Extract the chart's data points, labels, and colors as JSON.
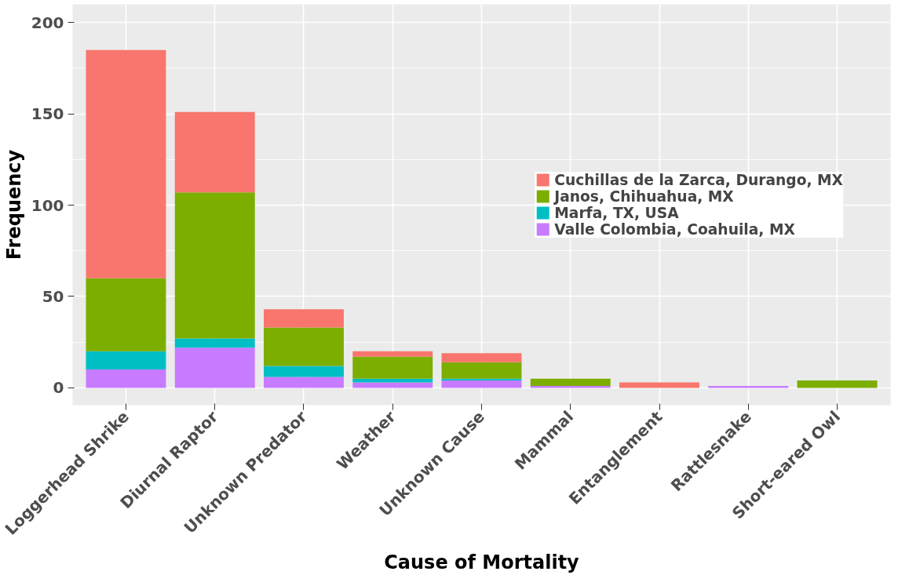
{
  "chart_data": {
    "type": "bar",
    "stacked": true,
    "xlabel": "Cause of Mortality",
    "ylabel": "Frequency",
    "categories": [
      "Loggerhead Shrike",
      "Diurnal Raptor",
      "Unknown Predator",
      "Weather",
      "Unknown Cause",
      "Mammal",
      "Entanglement",
      "Rattlesnake",
      "Short-eared Owl"
    ],
    "series": [
      {
        "name": "Valle Colombia, Coahuila, MX",
        "color": "#c77cff",
        "values": [
          10,
          22,
          6,
          3,
          4,
          1,
          0,
          1,
          0
        ]
      },
      {
        "name": "Marfa, TX, USA",
        "color": "#00bfc4",
        "values": [
          10,
          5,
          6,
          2,
          1,
          0,
          0,
          0,
          0
        ]
      },
      {
        "name": "Janos, Chihuahua, MX",
        "color": "#7cae00",
        "values": [
          40,
          80,
          21,
          12,
          9,
          4,
          0,
          0,
          4
        ]
      },
      {
        "name": "Cuchillas de la Zarca, Durango, MX",
        "color": "#f8766d",
        "values": [
          125,
          44,
          10,
          3,
          5,
          0,
          3,
          0,
          0
        ]
      }
    ],
    "ylim": [
      -9.5,
      210
    ],
    "yticks": [
      0,
      50,
      100,
      150,
      200
    ],
    "grid": true,
    "legend": "right"
  }
}
